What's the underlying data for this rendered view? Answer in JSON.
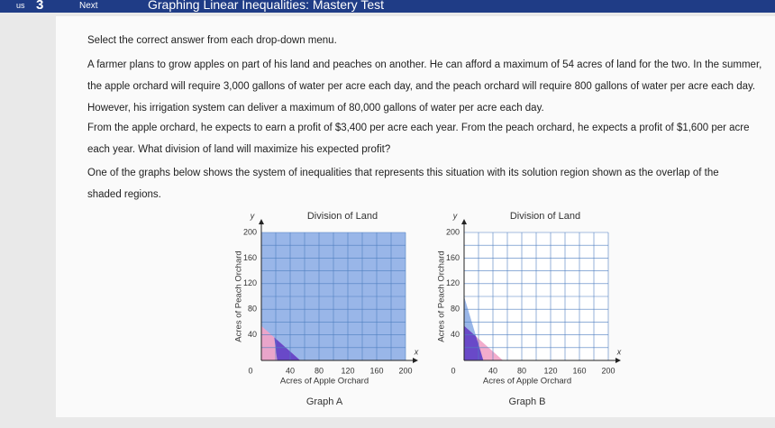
{
  "header": {
    "section": "us",
    "question_number": "3",
    "next": "Next",
    "title": "Graphing Linear Inequalities: Mastery Test"
  },
  "instruction": "Select the correct answer from each drop-down menu.",
  "paragraphs": [
    "A farmer plans to grow apples on part of his land and peaches on another. He can afford a maximum of 54 acres of land for the two. In the summer, the apple orchard will require 3,000 gallons of water per acre each day, and the peach orchard will require 800 gallons of water per acre each day. However, his irrigation system can deliver a maximum of 80,000 gallons of water per acre each day.",
    "From the apple orchard, he expects to earn a profit of $3,400 per acre each year. From the peach orchard, he expects a profit of $1,600 per acre each year. What division of land will maximize his expected profit?",
    "One of the graphs below shows the system of inequalities that represents this situation with its solution region shown as the overlap of the shaded regions."
  ],
  "graphs": [
    {
      "title": "Division of Land",
      "x_axis": "x",
      "y_axis": "y",
      "x_label": "Acres of Apple Orchard",
      "y_label": "Acres of Peach Orchard",
      "caption": "Graph A",
      "origin_label": "0",
      "xlim": [
        0,
        200
      ],
      "ylim": [
        0,
        200
      ],
      "xticks": [
        40,
        80,
        120,
        160,
        200
      ],
      "yticks": [
        40,
        80,
        120,
        160,
        200
      ],
      "regions": [
        {
          "color": "#8eaee6",
          "points": [
            [
              0,
              0
            ],
            [
              200,
              0
            ],
            [
              200,
              200
            ],
            [
              0,
              200
            ]
          ]
        },
        {
          "color": "#f2a3c6",
          "points": [
            [
              0,
              0
            ],
            [
              0,
              54
            ],
            [
              54,
              0
            ]
          ]
        },
        {
          "color": "#5b3fc8",
          "points": [
            [
              18,
              36
            ],
            [
              54,
              0
            ],
            [
              22,
              0
            ]
          ]
        }
      ]
    },
    {
      "title": "Division of Land",
      "x_axis": "x",
      "y_axis": "y",
      "x_label": "Acres of Apple Orchard",
      "y_label": "Acres of Peach Orchard",
      "caption": "Graph B",
      "origin_label": "0",
      "xlim": [
        0,
        200
      ],
      "ylim": [
        0,
        200
      ],
      "xticks": [
        40,
        80,
        120,
        160,
        200
      ],
      "yticks": [
        40,
        80,
        120,
        160,
        200
      ],
      "regions": [
        {
          "color": "#8eaee6",
          "points": [
            [
              0,
              0
            ],
            [
              0,
              100
            ],
            [
              26.7,
              0
            ]
          ]
        },
        {
          "color": "#f2a3c6",
          "points": [
            [
              0,
              0
            ],
            [
              0,
              54
            ],
            [
              54,
              0
            ]
          ]
        },
        {
          "color": "#5b3fc8",
          "points": [
            [
              0,
              0
            ],
            [
              0,
              54
            ],
            [
              16.7,
              37.3
            ],
            [
              26.7,
              0
            ]
          ]
        }
      ]
    }
  ]
}
